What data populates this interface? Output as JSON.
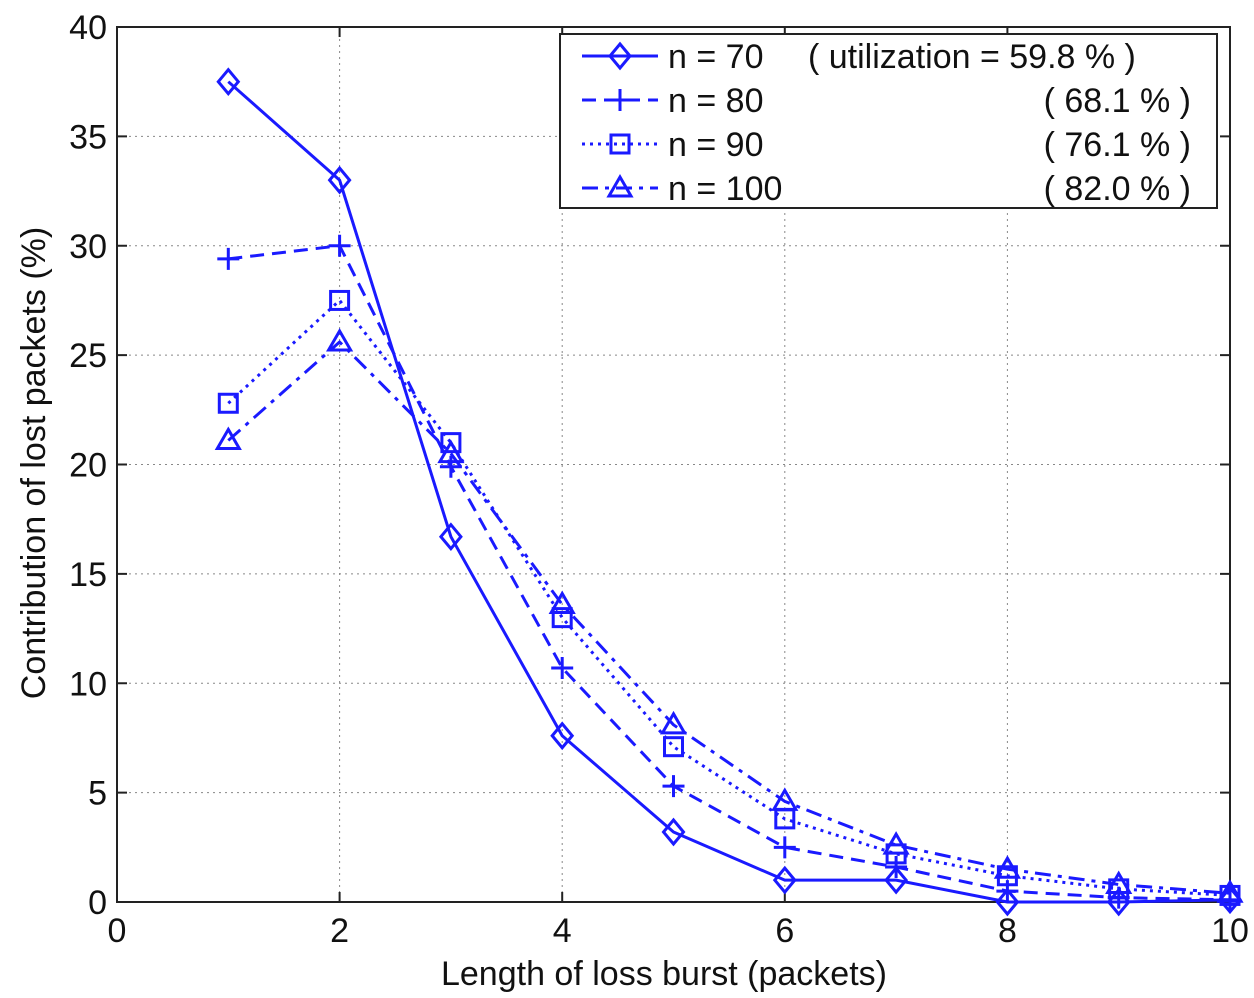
{
  "chart_data": {
    "type": "line",
    "xlabel": "Length of loss burst (packets)",
    "ylabel": "Contribution of lost packets (%)",
    "xlim": [
      0,
      10
    ],
    "ylim": [
      0,
      40
    ],
    "xticks": [
      0,
      2,
      4,
      6,
      8,
      10
    ],
    "yticks": [
      0,
      5,
      10,
      15,
      20,
      25,
      30,
      35,
      40
    ],
    "grid": true,
    "legend_position": "top-right",
    "line_color": "#1a1aff",
    "x": [
      1,
      2,
      3,
      4,
      5,
      6,
      7,
      8,
      9,
      10
    ],
    "series": [
      {
        "name": "n = 70",
        "note": "( utilization = 59.8 % )",
        "marker": "diamond",
        "dash": "solid",
        "values": [
          37.5,
          33.0,
          16.7,
          7.6,
          3.2,
          1.0,
          1.0,
          0.0,
          0.0,
          0.1
        ]
      },
      {
        "name": "n = 80",
        "note": "( 68.1 % )",
        "marker": "plus",
        "dash": "dashed",
        "values": [
          29.4,
          30.0,
          19.9,
          10.7,
          5.3,
          2.5,
          1.6,
          0.5,
          0.2,
          0.1
        ]
      },
      {
        "name": "n = 90",
        "note": "( 76.1 % )",
        "marker": "square",
        "dash": "dotted",
        "values": [
          22.8,
          27.5,
          21.0,
          13.0,
          7.1,
          3.8,
          2.2,
          1.2,
          0.6,
          0.3
        ]
      },
      {
        "name": "n = 100",
        "note": "( 82.0 % )",
        "marker": "triangle",
        "dash": "dashdot",
        "values": [
          21.1,
          25.6,
          20.5,
          13.6,
          8.1,
          4.6,
          2.6,
          1.5,
          0.8,
          0.4
        ]
      }
    ]
  }
}
